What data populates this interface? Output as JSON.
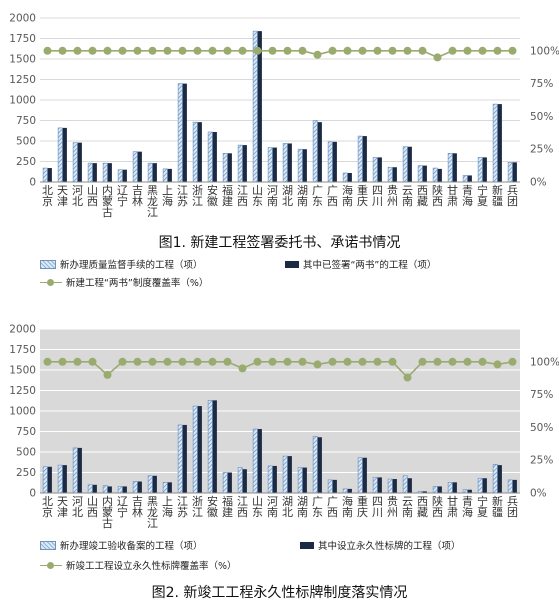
{
  "provinces": [
    "北京",
    "天津",
    "河北",
    "山西",
    "内蒙古",
    "辽宁",
    "吉林",
    "黑龙江",
    "上海",
    "江苏",
    "浙江",
    "安徽",
    "福建",
    "江西",
    "山东",
    "河南",
    "湖北",
    "湖南",
    "广东",
    "广西",
    "海南",
    "重庆",
    "四川",
    "贵州",
    "云南",
    "西藏",
    "陕西",
    "甘肃",
    "青海",
    "宁夏",
    "新疆",
    "兵团"
  ],
  "charts": [
    {
      "caption": "图1. 新建工程签署委托书、承诺书情况",
      "legend": {
        "bar1": "新办理质量监督手续的工程（项）",
        "bar2": "其中已签署“两书”的工程（项）",
        "line": "新建工程“两书”制度覆盖率（%）"
      },
      "background": "#ffffff"
    },
    {
      "caption": "图2. 新竣工工程永久性标牌制度落实情况",
      "legend": {
        "bar1": "新办理竣工验收备案的工程（项）",
        "bar2": "其中设立永久性标牌的工程（项）",
        "line": "新竣工工程设立永久性标牌覆盖率（%）"
      },
      "background": "#d9d9d9"
    }
  ],
  "chart_data": [
    {
      "type": "bar",
      "title": "图1. 新建工程签署委托书、承诺书情况",
      "categories": [
        "北京",
        "天津",
        "河北",
        "山西",
        "内蒙古",
        "辽宁",
        "吉林",
        "黑龙江",
        "上海",
        "江苏",
        "浙江",
        "安徽",
        "福建",
        "江西",
        "山东",
        "河南",
        "湖北",
        "湖南",
        "广东",
        "广西",
        "海南",
        "重庆",
        "四川",
        "贵州",
        "云南",
        "西藏",
        "陕西",
        "甘肃",
        "青海",
        "宁夏",
        "新疆",
        "兵团"
      ],
      "series": [
        {
          "name": "新办理质量监督手续的工程（项）",
          "values": [
            170,
            660,
            480,
            230,
            230,
            150,
            370,
            230,
            160,
            1200,
            730,
            610,
            350,
            450,
            1840,
            420,
            470,
            400,
            750,
            490,
            110,
            560,
            300,
            180,
            430,
            200,
            170,
            350,
            80,
            300,
            950,
            240
          ]
        },
        {
          "name": "其中已签署“两书”的工程（项）",
          "values": [
            170,
            660,
            480,
            230,
            230,
            150,
            370,
            230,
            160,
            1200,
            730,
            610,
            350,
            450,
            1840,
            420,
            470,
            400,
            730,
            490,
            110,
            560,
            300,
            180,
            430,
            200,
            160,
            350,
            80,
            300,
            950,
            240
          ]
        },
        {
          "name": "新建工程“两书”制度覆盖率（%）",
          "axis": "right",
          "values": [
            100,
            100,
            100,
            100,
            100,
            100,
            100,
            100,
            100,
            100,
            100,
            100,
            100,
            100,
            100,
            100,
            100,
            100,
            97,
            100,
            100,
            100,
            100,
            100,
            100,
            100,
            95,
            100,
            100,
            100,
            100,
            100
          ]
        }
      ],
      "ylim": [
        0,
        2000
      ],
      "yticks": [
        0,
        250,
        500,
        750,
        1000,
        1250,
        1500,
        1750,
        2000
      ],
      "y2lim": [
        0,
        125
      ],
      "y2ticks": [
        "0%",
        "25%",
        "50%",
        "75%",
        "100%"
      ],
      "grid": true,
      "legend_position": "bottom"
    },
    {
      "type": "bar",
      "title": "图2. 新竣工工程永久性标牌制度落实情况",
      "categories": [
        "北京",
        "天津",
        "河北",
        "山西",
        "内蒙古",
        "辽宁",
        "吉林",
        "黑龙江",
        "上海",
        "江苏",
        "浙江",
        "安徽",
        "福建",
        "江西",
        "山东",
        "河南",
        "湖北",
        "湖南",
        "广东",
        "广西",
        "海南",
        "重庆",
        "四川",
        "贵州",
        "云南",
        "西藏",
        "陕西",
        "甘肃",
        "青海",
        "宁夏",
        "新疆",
        "兵团"
      ],
      "series": [
        {
          "name": "新办理竣工验收备案的工程（项）",
          "values": [
            320,
            340,
            550,
            100,
            90,
            80,
            140,
            210,
            130,
            830,
            1060,
            1130,
            250,
            310,
            780,
            330,
            450,
            310,
            690,
            160,
            50,
            430,
            190,
            170,
            210,
            20,
            80,
            130,
            40,
            180,
            350,
            160
          ]
        },
        {
          "name": "其中设立永久性标牌的工程（项）",
          "values": [
            320,
            340,
            550,
            100,
            80,
            80,
            140,
            210,
            130,
            830,
            1060,
            1130,
            250,
            290,
            780,
            330,
            450,
            310,
            680,
            160,
            50,
            430,
            190,
            170,
            180,
            20,
            80,
            130,
            40,
            180,
            340,
            160
          ]
        },
        {
          "name": "新竣工工程设立永久性标牌覆盖率（%）",
          "axis": "right",
          "values": [
            100,
            100,
            100,
            100,
            90,
            100,
            100,
            100,
            100,
            100,
            100,
            100,
            100,
            95,
            100,
            100,
            100,
            100,
            98,
            100,
            100,
            100,
            100,
            100,
            88,
            100,
            100,
            100,
            100,
            100,
            98,
            100
          ]
        }
      ],
      "ylim": [
        0,
        2000
      ],
      "yticks": [
        0,
        250,
        500,
        750,
        1000,
        1250,
        1500,
        1750,
        2000
      ],
      "y2lim": [
        0,
        125
      ],
      "y2ticks": [
        "0%",
        "25%",
        "50%",
        "75%",
        "100%"
      ],
      "grid": true,
      "legend_position": "bottom"
    }
  ]
}
